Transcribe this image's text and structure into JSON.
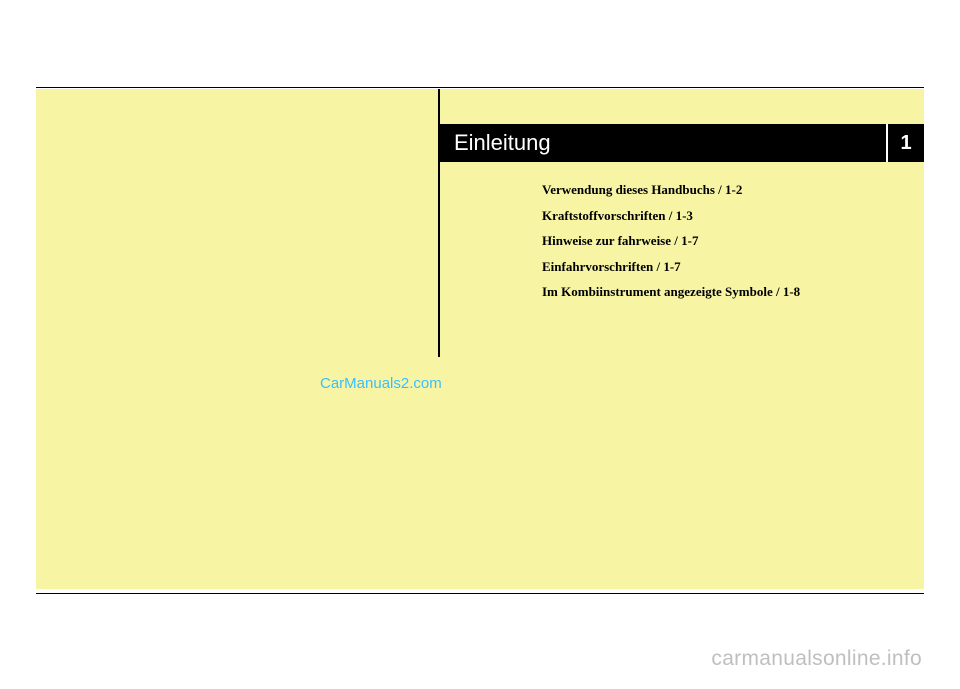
{
  "chapter": {
    "title": "Einleitung",
    "number": "1"
  },
  "toc": {
    "items": [
      "Verwendung dieses Handbuchs / 1-2",
      "Kraftstoffvorschriften / 1-3",
      "Hinweise zur fahrweise / 1-7",
      "Einfahrvorschriften / 1-7",
      "Im Kombiinstrument angezeigte Symbole / 1-8"
    ]
  },
  "watermarks": {
    "center": "CarManuals2.com",
    "bottom": "carmanualsonline.info"
  },
  "colors": {
    "page_background": "#f7f5a4",
    "rule_color": "#000000",
    "chapter_bar_bg": "#000000",
    "chapter_text": "#ffffff",
    "toc_text": "#000000",
    "watermark_center": "#39bfff",
    "watermark_bottom": "#bfbfbf"
  }
}
